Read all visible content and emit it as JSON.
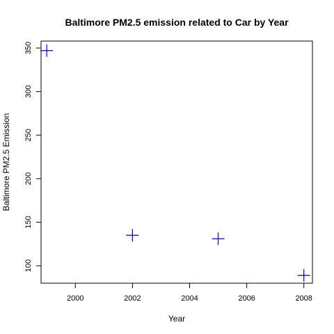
{
  "chart_data": {
    "type": "scatter",
    "title": "Baltimore PM2.5 emission related to Car by Year",
    "xlabel": "Year",
    "ylabel": "Baltimore PM2.5 Emission",
    "x": [
      1999,
      2002,
      2005,
      2008
    ],
    "y": [
      347,
      135,
      131,
      89
    ],
    "xlim": [
      1998.8,
      2008.3
    ],
    "ylim": [
      80,
      358
    ],
    "xticks": [
      2000,
      2002,
      2004,
      2006,
      2008
    ],
    "yticks": [
      100,
      150,
      200,
      250,
      300,
      350
    ],
    "marker": "plus",
    "point_color": "#0000cc",
    "grid": false
  }
}
